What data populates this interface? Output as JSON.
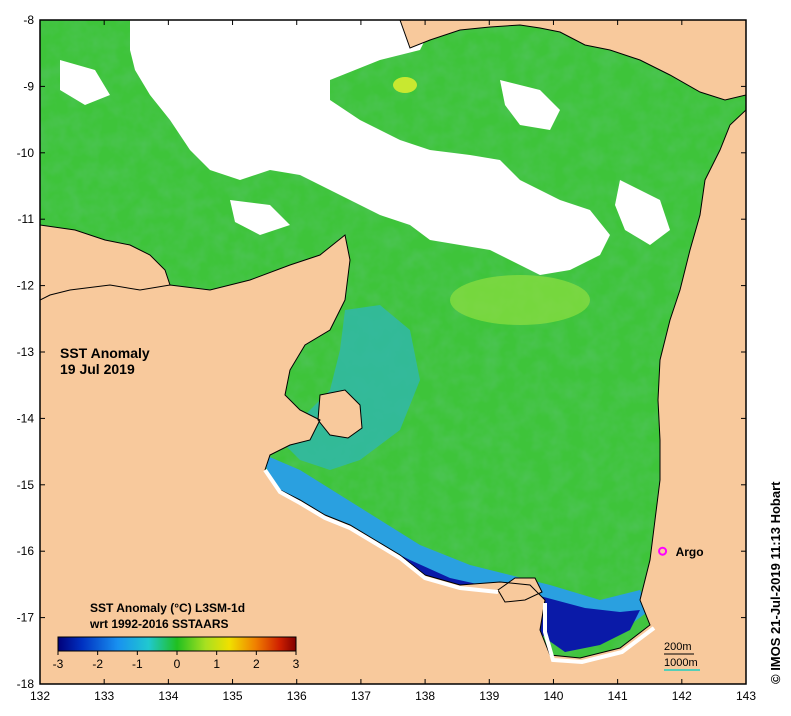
{
  "map": {
    "title_line1": "SST Anomaly",
    "title_line2": "19 Jul 2019",
    "lon_range": [
      132,
      143
    ],
    "lat_range": [
      -18,
      -8
    ],
    "lon_ticks": [
      "132",
      "133",
      "134",
      "135",
      "136",
      "137",
      "138",
      "139",
      "140",
      "141",
      "142",
      "143"
    ],
    "lat_ticks": [
      "-8",
      "-9",
      "-10",
      "-11",
      "-12",
      "-13",
      "-14",
      "-15",
      "-16",
      "-17",
      "-18"
    ],
    "colors": {
      "land": "#f8c99c",
      "cloud": "#ffffff",
      "sea_base": "#3ec43a",
      "coast": "#000000"
    }
  },
  "legend": {
    "title_line1": "SST Anomaly (°C) L3SM-1d",
    "title_line2": "wrt 1992-2016 SSTAARS",
    "range": [
      -3,
      3
    ],
    "ticks": [
      "-3",
      "-2",
      "-1",
      "0",
      "1",
      "2",
      "3"
    ],
    "stops": [
      "#00007a",
      "#0040d0",
      "#18a8f0",
      "#1fc8a0",
      "#20c020",
      "#a8e020",
      "#f0e000",
      "#f08000",
      "#c01000",
      "#800000"
    ]
  },
  "contours": {
    "label_200": "200m",
    "label_1000": "1000m",
    "color_200": "#000000",
    "color_1000": "#20d0c0"
  },
  "argo": {
    "label": "Argo",
    "lon": 141.7,
    "lat": -16.0,
    "color": "#ff00ff"
  },
  "credit": "© IMOS 21-Jul-2019 11:13 Hobart"
}
